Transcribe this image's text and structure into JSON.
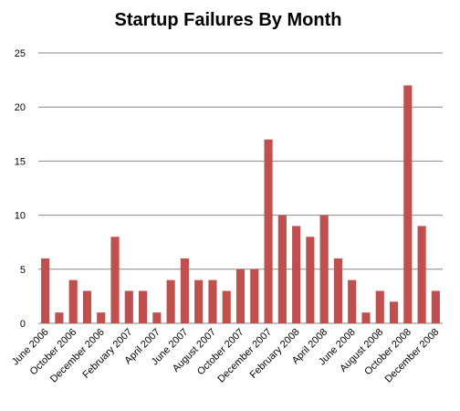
{
  "chart_data": {
    "type": "bar",
    "title": "Startup Failures By Month",
    "categories": [
      "June 2006",
      null,
      "October 2006",
      null,
      "December 2006",
      null,
      "February 2007",
      null,
      "April 2007",
      null,
      "June 2007",
      null,
      "August 2007",
      null,
      "October 2007",
      null,
      "December 2007",
      null,
      "February 2008",
      null,
      "April 2008",
      null,
      "June 2008",
      null,
      "August 2008",
      null,
      "October 2008",
      null,
      "December 2008"
    ],
    "values": [
      6,
      1,
      4,
      3,
      1,
      8,
      3,
      3,
      1,
      4,
      6,
      4,
      4,
      3,
      5,
      5,
      17,
      10,
      9,
      8,
      10,
      6,
      4,
      1,
      3,
      2,
      22,
      9,
      3
    ],
    "color": "#c0504d",
    "ylim": [
      0,
      25
    ],
    "yticks": [
      0,
      5,
      10,
      15,
      20,
      25
    ],
    "grid": true
  }
}
